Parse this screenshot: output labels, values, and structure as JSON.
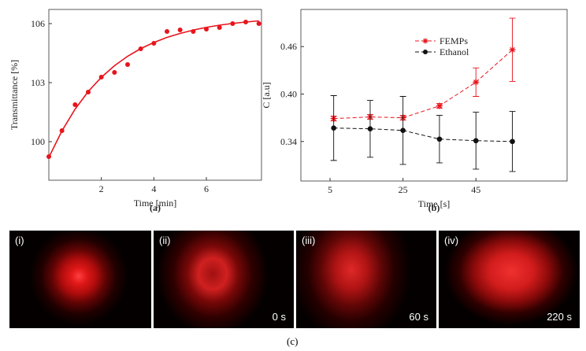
{
  "chart_data": [
    {
      "type": "scatter",
      "caption": "(a)",
      "xlabel": "Time [min]",
      "ylabel": "Transmittance [%]",
      "x": [
        0,
        0.5,
        1,
        1.5,
        2,
        2.5,
        3,
        3.5,
        4,
        4.5,
        5,
        5.5,
        6,
        6.5,
        7,
        7.5,
        8
      ],
      "series": [
        {
          "mode": "markers",
          "color": "#e8141c",
          "values": [
            99.24,
            100.56,
            101.88,
            102.52,
            103.28,
            103.52,
            103.92,
            104.72,
            105.0,
            105.6,
            105.68,
            105.6,
            105.72,
            105.8,
            106.0,
            106.08,
            106.0
          ]
        },
        {
          "mode": "line",
          "color": "#e8141c",
          "values": [
            99.2,
            100.55,
            101.65,
            102.55,
            103.27,
            103.86,
            104.34,
            104.73,
            105.04,
            105.3,
            105.5,
            105.67,
            105.81,
            105.92,
            106.01,
            106.08,
            106.14
          ]
        }
      ],
      "xlim": [
        0,
        8.1
      ],
      "ylim": [
        98.04,
        106.72
      ],
      "xticks": [
        2,
        4,
        6
      ],
      "yticks": [
        100,
        103,
        106
      ]
    },
    {
      "type": "line",
      "caption": "(b)",
      "xlabel": "Time [s]",
      "ylabel": "C [a.u]",
      "x": [
        6,
        16,
        25,
        35,
        45,
        55
      ],
      "series": [
        {
          "name": "FEMPs",
          "color": "#e8141c",
          "marker": "*",
          "linestyle": "--",
          "values": [
            0.369,
            0.371,
            0.37,
            0.385,
            0.415,
            0.456
          ],
          "errors": [
            0.003,
            0.003,
            0.003,
            0.003,
            0.018,
            0.04
          ]
        },
        {
          "name": "Ethanol",
          "color": "#111111",
          "marker": "o",
          "linestyle": "--",
          "values": [
            0.357,
            0.356,
            0.354,
            0.343,
            0.341,
            0.34
          ],
          "errors": [
            0.041,
            0.036,
            0.043,
            0.03,
            0.036,
            0.038
          ]
        }
      ],
      "xlim": [
        -3,
        70
      ],
      "ylim": [
        0.29,
        0.507
      ],
      "xticks": [
        5,
        25,
        45
      ],
      "yticks": [
        0.34,
        {
          "value": 0.4,
          "label": "0.40"
        },
        0.46
      ],
      "legend": "upper center"
    }
  ],
  "images": {
    "caption": "(c)",
    "panels": [
      {
        "label": "(i)"
      },
      {
        "label": "(ii)",
        "time": "0 s"
      },
      {
        "label": "(iii)",
        "time": "60 s"
      },
      {
        "label": "(iv)",
        "time": "220 s"
      }
    ]
  }
}
